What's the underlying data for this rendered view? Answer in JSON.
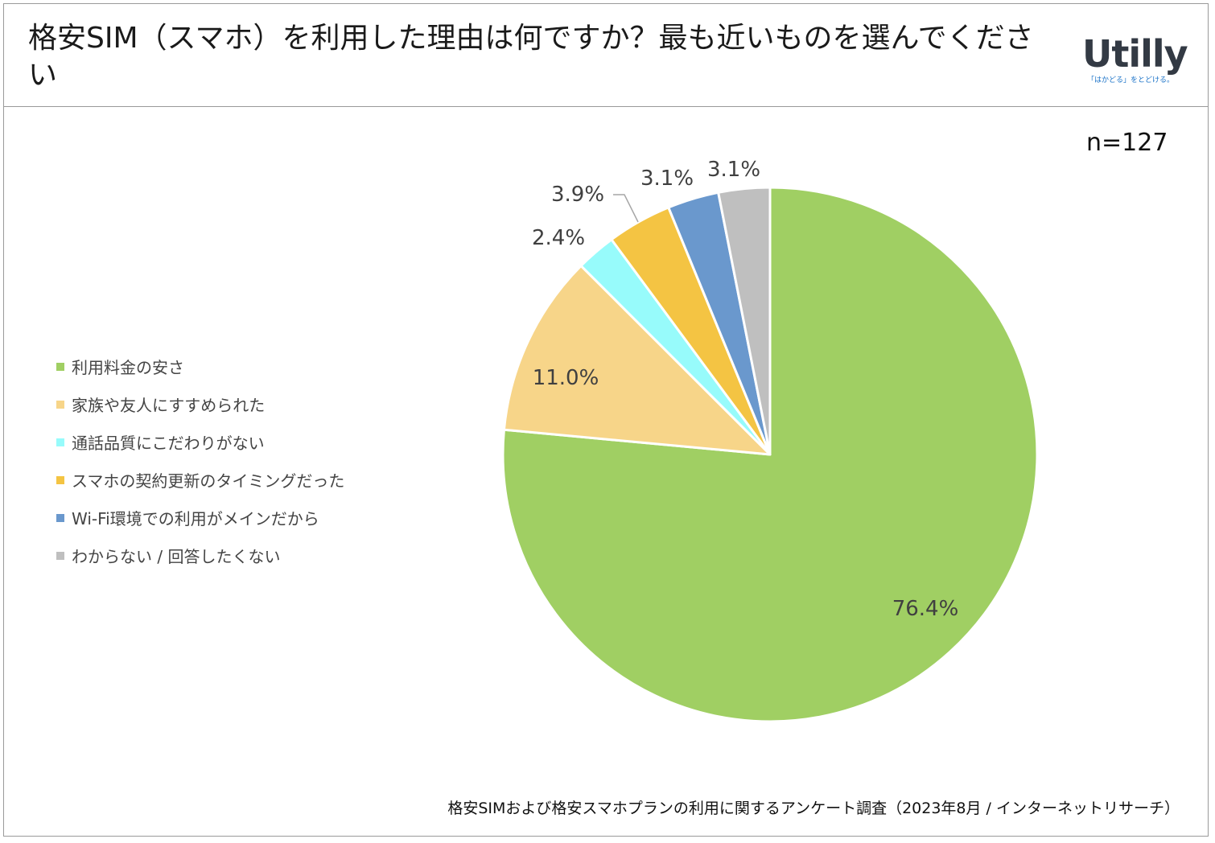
{
  "header": {
    "title": "格安SIM（スマホ）を利用した理由は何ですか？最も近いものを選んでください",
    "logo_text": "Utilly",
    "logo_tagline": "「はかどる」をとどける。"
  },
  "sample_size": "n=127",
  "source_note": "格安SIMおよび格安スマホプランの利用に関するアンケート調査（2023年8月 / インターネットリサーチ）",
  "chart_data": {
    "type": "pie",
    "title": "格安SIM（スマホ）を利用した理由は何ですか？最も近いものを選んでください",
    "start_angle_deg": 0,
    "direction": "clockwise",
    "legend_position": "left",
    "slices": [
      {
        "label": "利用料金の安さ",
        "value": 76.4,
        "display": "76.4%",
        "color": "#a0cf63"
      },
      {
        "label": "家族や友人にすすめられた",
        "value": 11.0,
        "display": "11.0%",
        "color": "#f7d589"
      },
      {
        "label": "通話品質にこだわりがない",
        "value": 2.4,
        "display": "2.4%",
        "color": "#97fbfb"
      },
      {
        "label": "スマホの契約更新のタイミングだった",
        "value": 3.9,
        "display": "3.9%",
        "color": "#f4c443"
      },
      {
        "label": "Wi-Fi環境での利用がメインだから",
        "value": 3.1,
        "display": "3.1%",
        "color": "#6a98cd"
      },
      {
        "label": "わからない / 回答したくない",
        "value": 3.1,
        "display": "3.1%",
        "color": "#bfbfbf"
      }
    ]
  }
}
